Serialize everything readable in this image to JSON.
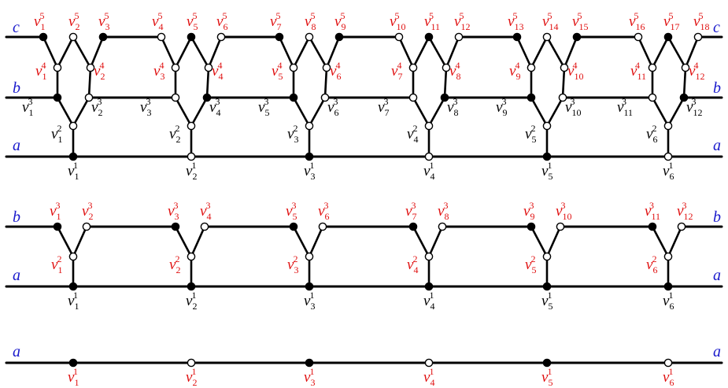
{
  "colors": {
    "line": "#000000",
    "filled_vertex": "#000000",
    "open_vertex": "#ffffff",
    "rail_label": "#1a1acc",
    "label_red": "#e01010",
    "label_black": "#000000"
  },
  "vertex_symbol": "v",
  "rail_labels": {
    "a": "a",
    "b": "b",
    "c": "c"
  },
  "panels": [
    {
      "id": "panel-top",
      "rails": [
        "c",
        "b",
        "a"
      ],
      "levels": {
        "1": {
          "filled_pattern": "alternating",
          "labels": [
            "1",
            "2",
            "3",
            "4",
            "5",
            "6"
          ]
        },
        "2": {
          "labels": [
            "1",
            "2",
            "3",
            "4",
            "5",
            "6"
          ]
        },
        "3": {
          "labels": [
            "1",
            "2",
            "3",
            "4",
            "5",
            "6",
            "7",
            "8",
            "9",
            "10",
            "11",
            "12"
          ]
        },
        "4": {
          "labels": [
            "1",
            "2",
            "3",
            "4",
            "5",
            "6",
            "7",
            "8",
            "9",
            "10",
            "11",
            "12"
          ]
        },
        "5": {
          "labels": [
            "1",
            "2",
            "3",
            "4",
            "5",
            "6",
            "7",
            "8",
            "9",
            "10",
            "11",
            "12",
            "13",
            "14",
            "15",
            "16",
            "17",
            "18"
          ]
        }
      }
    },
    {
      "id": "panel-middle",
      "rails": [
        "b",
        "a"
      ],
      "levels": {
        "1": {
          "labels": [
            "1",
            "2",
            "3",
            "4",
            "5",
            "6"
          ]
        },
        "2": {
          "labels": [
            "1",
            "2",
            "3",
            "4",
            "5",
            "6"
          ]
        },
        "3": {
          "labels": [
            "1",
            "2",
            "3",
            "4",
            "5",
            "6",
            "7",
            "8",
            "9",
            "10",
            "11",
            "12"
          ]
        }
      }
    },
    {
      "id": "panel-bottom",
      "rails": [
        "a"
      ],
      "levels": {
        "1": {
          "labels": [
            "1",
            "2",
            "3",
            "4",
            "5",
            "6"
          ]
        }
      }
    }
  ]
}
